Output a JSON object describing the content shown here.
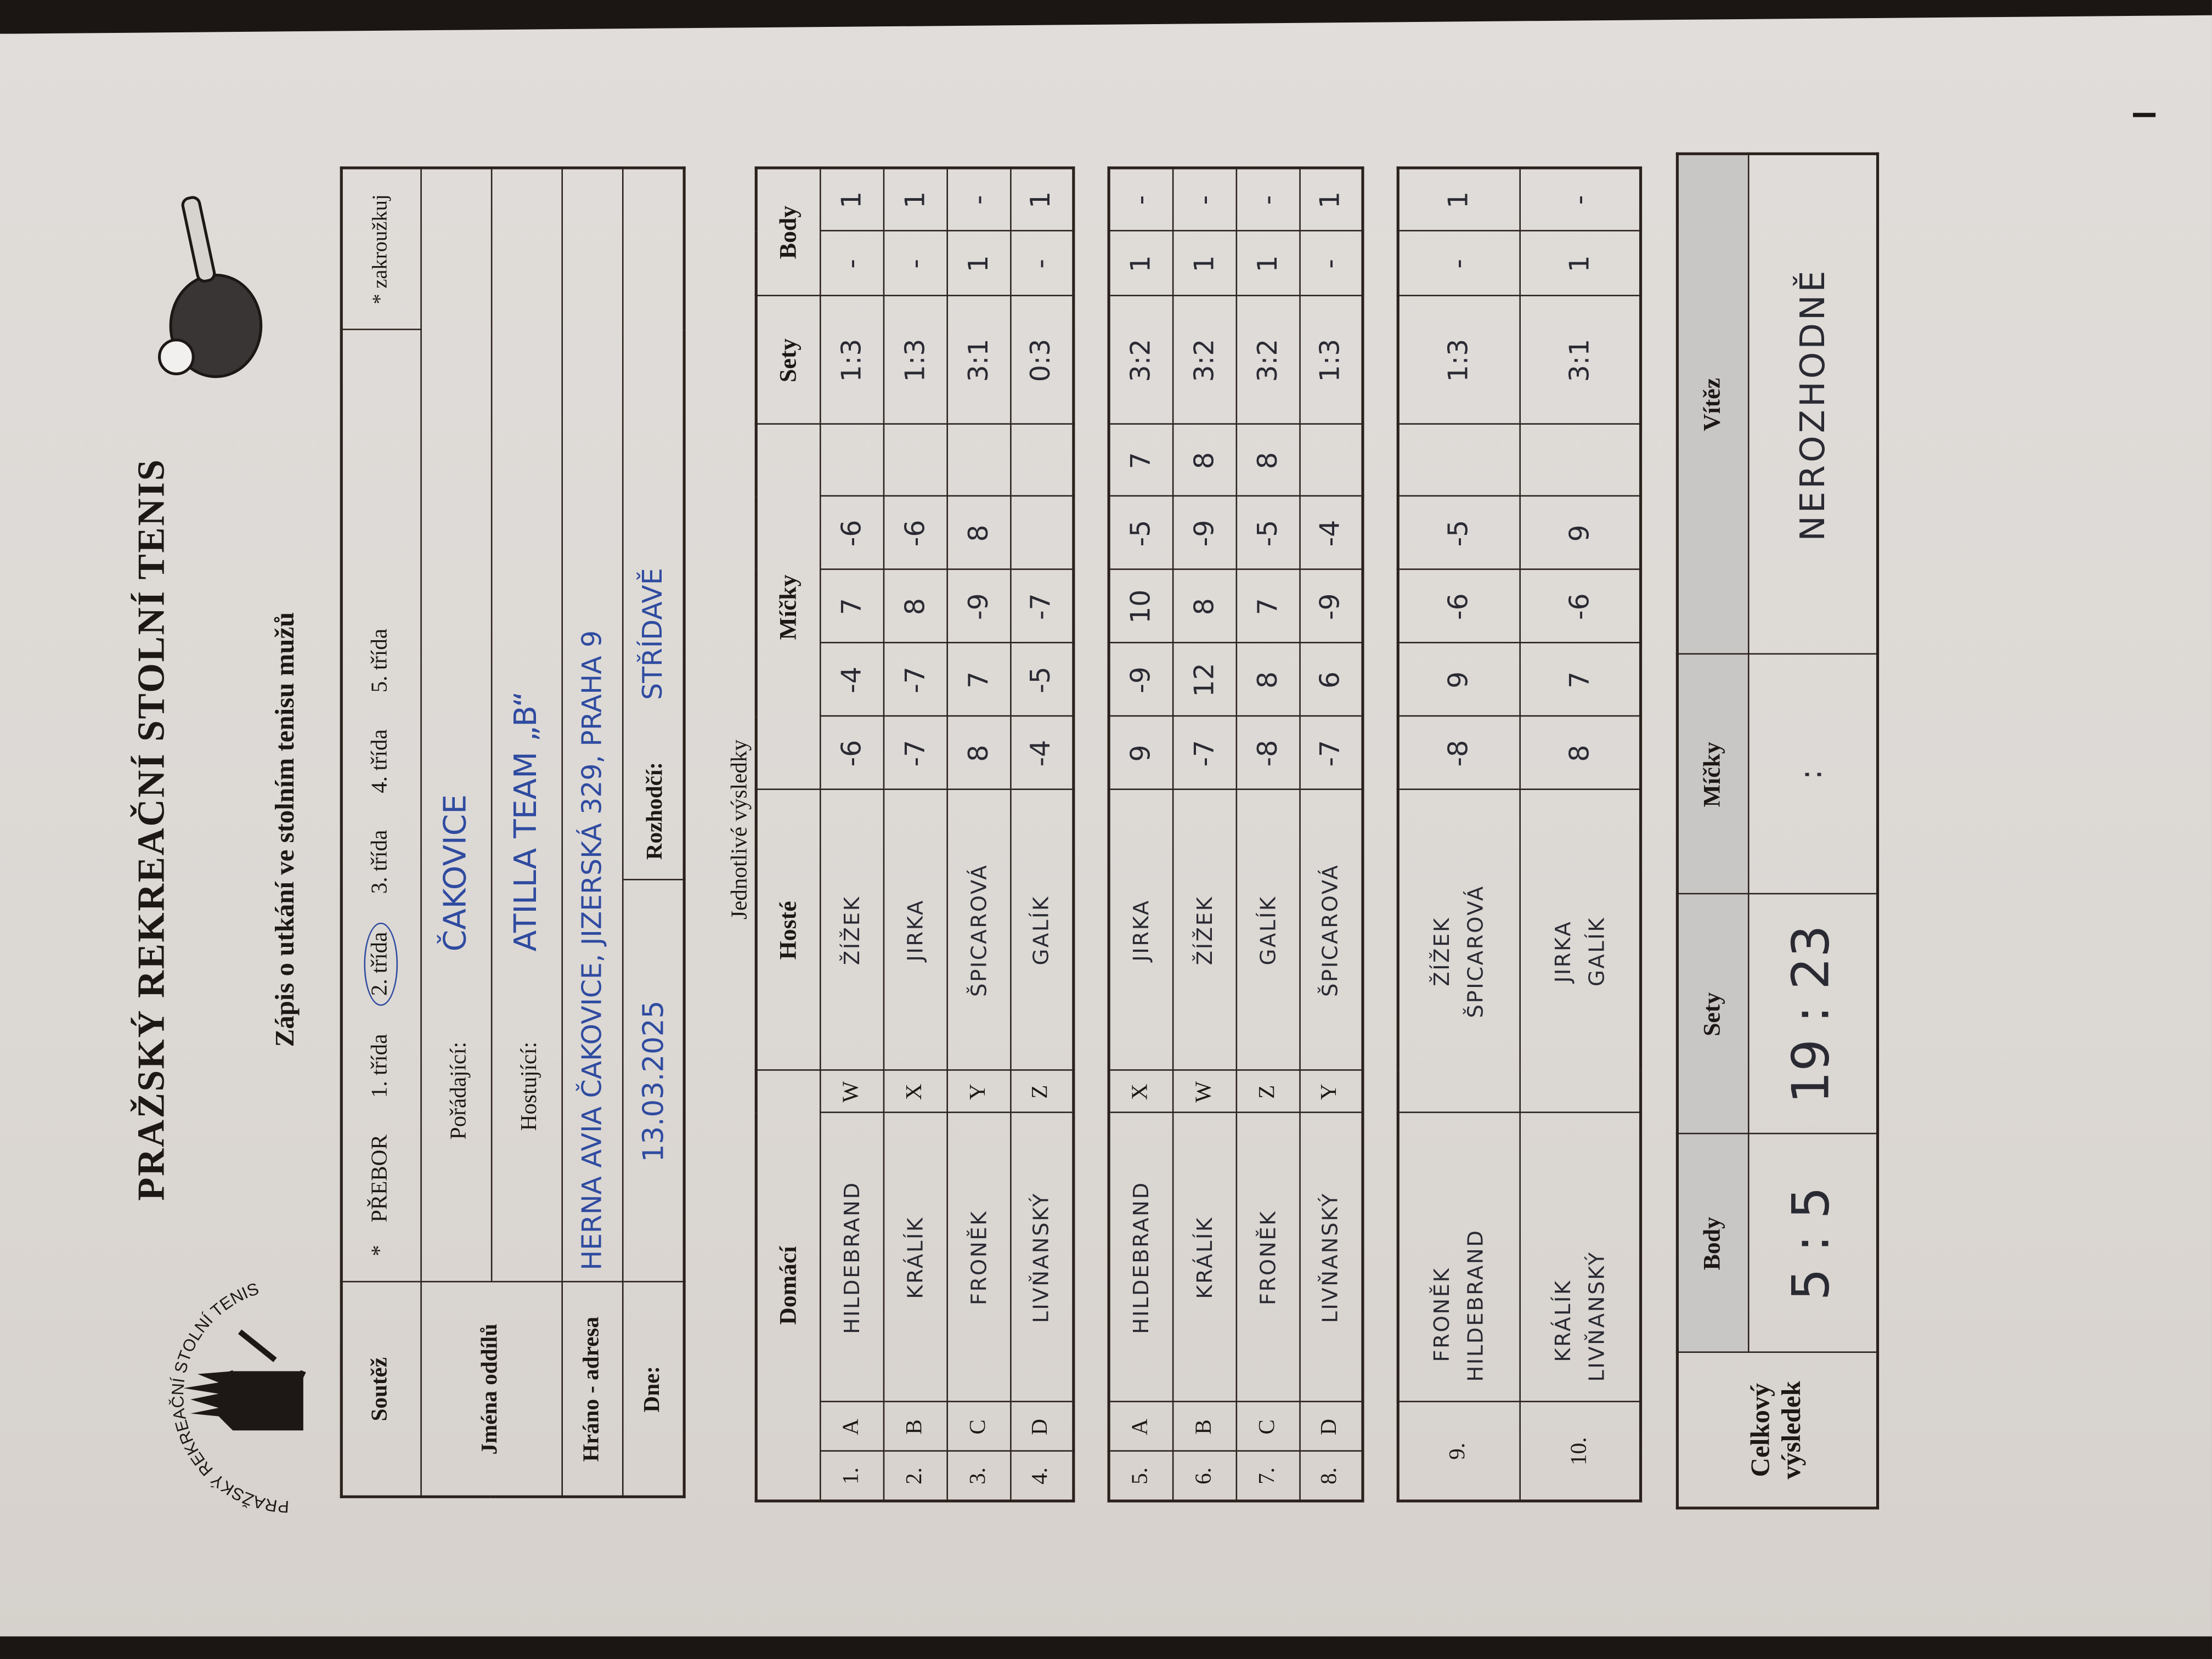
{
  "header": {
    "title": "PRAŽSKÝ REKREAČNÍ STOLNÍ TENIS",
    "subtitle": "Zápis o utkání ve stolním tenisu mužů",
    "logo_text": "PRAŽSKÝ REKREAČNÍ STOLNÍ TENIS",
    "logo_icon": "prague-skyline-paddle-logo",
    "paddle_icon": "table-tennis-paddle-icon"
  },
  "info": {
    "soutez_label": "Soutěž",
    "asterisk": "*",
    "classes": [
      "PŘEBOR",
      "1. třída",
      "2. třída",
      "3. třída",
      "4. třída",
      "5. třída"
    ],
    "selected_class": "2. třída",
    "note": "* zakroužkuj",
    "jmena_label": "Jména oddílů",
    "poradajici_label": "Pořádající:",
    "poradajici": "ČAKOVICE",
    "hostujici_label": "Hostující:",
    "hostujici": "ATILLA TEAM „B“",
    "hrano_label": "Hráno - adresa",
    "hrano": "HERNA AVIA ČAKOVICE, JIZERSKÁ 329, PRAHA 9",
    "dne_label": "Dne:",
    "dne": "13.03.2025",
    "rozhodci_label": "Rozhodčí:",
    "rozhodci": "STŘÍDAVĚ"
  },
  "results": {
    "section_label": "Jednotlivé výsledky",
    "columns": {
      "home": "Domácí",
      "away": "Hosté",
      "balls": "Míčky",
      "sets": "Sety",
      "points": "Body"
    },
    "singles": [
      {
        "no": "1.",
        "home_letter": "A",
        "home": "HILDEBRAND",
        "away_letter": "W",
        "away": "ŽÍŽEK",
        "balls": [
          "-6",
          "-4",
          "7",
          "-6",
          ""
        ],
        "sets": "1:3",
        "points": [
          "-",
          "1"
        ]
      },
      {
        "no": "2.",
        "home_letter": "B",
        "home": "KRÁLÍK",
        "away_letter": "X",
        "away": "JIRKA",
        "balls": [
          "-7",
          "-7",
          "8",
          "-6",
          ""
        ],
        "sets": "1:3",
        "points": [
          "-",
          "1"
        ]
      },
      {
        "no": "3.",
        "home_letter": "C",
        "home": "FRONĚK",
        "away_letter": "Y",
        "away": "ŠPICAROVÁ",
        "balls": [
          "8",
          "7",
          "-9",
          "8",
          ""
        ],
        "sets": "3:1",
        "points": [
          "1",
          "-"
        ]
      },
      {
        "no": "4.",
        "home_letter": "D",
        "home": "LIVŇANSKÝ",
        "away_letter": "Z",
        "away": "GALÍK",
        "balls": [
          "-4",
          "-5",
          "-7",
          "",
          ""
        ],
        "sets": "0:3",
        "points": [
          "-",
          "1"
        ]
      },
      {
        "no": "5.",
        "home_letter": "A",
        "home": "HILDEBRAND",
        "away_letter": "X",
        "away": "JIRKA",
        "balls": [
          "9",
          "-9",
          "10",
          "-5",
          "7"
        ],
        "sets": "3:2",
        "points": [
          "1",
          "-"
        ]
      },
      {
        "no": "6.",
        "home_letter": "B",
        "home": "KRÁLÍK",
        "away_letter": "W",
        "away": "ŽÍŽEK",
        "balls": [
          "-7",
          "12",
          "8",
          "-9",
          "8"
        ],
        "sets": "3:2",
        "points": [
          "1",
          "-"
        ]
      },
      {
        "no": "7.",
        "home_letter": "C",
        "home": "FRONĚK",
        "away_letter": "Z",
        "away": "GALÍK",
        "balls": [
          "-8",
          "8",
          "7",
          "-5",
          "8"
        ],
        "sets": "3:2",
        "points": [
          "1",
          "-"
        ]
      },
      {
        "no": "8.",
        "home_letter": "D",
        "home": "LIVŇANSKÝ",
        "away_letter": "Y",
        "away": "ŠPICAROVÁ",
        "balls": [
          "-7",
          "6",
          "-9",
          "-4",
          ""
        ],
        "sets": "1:3",
        "points": [
          "-",
          "1"
        ]
      }
    ],
    "doubles": [
      {
        "no": "9.",
        "home": [
          "FRONĚK",
          "HILDEBRAND"
        ],
        "away": [
          "ŽÍŽEK",
          "ŠPICAROVÁ"
        ],
        "balls": [
          "-8",
          "9",
          "-6",
          "-5",
          ""
        ],
        "sets": "1:3",
        "points": [
          "-",
          "1"
        ]
      },
      {
        "no": "10.",
        "home": [
          "KRÁLÍK",
          "LIVŇANSKÝ"
        ],
        "away": [
          "JIRKA",
          "GALÍK"
        ],
        "balls": [
          "8",
          "7",
          "-6",
          "9",
          ""
        ],
        "sets": "3:1",
        "points": [
          "1",
          "-"
        ]
      }
    ]
  },
  "total": {
    "label_line1": "Celkový",
    "label_line2": "výsledek",
    "columns": {
      "points": "Body",
      "sets": "Sety",
      "balls": "Míčky",
      "winner": "Vítěz"
    },
    "points": "5 : 5",
    "sets": "19 : 23",
    "balls": ":",
    "winner": "NEROZHODNĚ"
  }
}
